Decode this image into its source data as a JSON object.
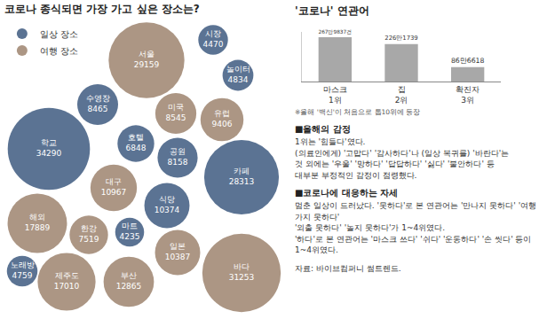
{
  "chart_data": [
    {
      "type": "bubble",
      "title": "코로나 종식되면 가장 가고 싶은 장소는?",
      "legend": "top left",
      "data_labels": true,
      "tick_labels": false,
      "series": [
        {
          "name": "일상 장소",
          "color": "#5b7393",
          "categories": [
            "시장",
            "놀이터",
            "수영장",
            "호텔",
            "학교",
            "카페",
            "공원",
            "식당",
            "마트",
            "노래방"
          ],
          "values": [
            4470,
            4834,
            8465,
            6848,
            34290,
            28313,
            8158,
            10374,
            4235,
            4759
          ]
        },
        {
          "name": "여행 장소",
          "color": "#ac9684",
          "categories": [
            "서울",
            "미국",
            "유럽",
            "대구",
            "해외",
            "한강",
            "일본",
            "부산",
            "제주도",
            "바다"
          ],
          "values": [
            29159,
            8545,
            9406,
            10967,
            17889,
            7519,
            10387,
            12865,
            17010,
            31253
          ]
        }
      ]
    },
    {
      "type": "bar",
      "title": "'코로나' 연관어",
      "categories": [
        "마스크",
        "집",
        "확진자"
      ],
      "rank_labels": [
        "1위",
        "2위",
        "3위"
      ],
      "values": [
        2679837,
        2261739,
        866618
      ],
      "value_labels": [
        "267만9837건",
        "226만1739",
        "86만6618"
      ],
      "color": "#a8a8a8",
      "ylim": [
        0,
        3000000
      ],
      "data_labels": true,
      "tick_labels": "x",
      "grid": false,
      "annotation": "※올해 '백신'이 처음으로 톱10위에 등장"
    }
  ],
  "text": {
    "sections": [
      {
        "heading": "■올해의 감정",
        "lines": [
          "1위는 '힘들다'였다.",
          "(의료인에게) '고맙다' '감사하다'나 (일상 복귀를) '바란다'는",
          "것 외에는 '우울' '망하다' '답답하다' '싫다' '불안하다' 등",
          "대부분 부정적인 감정이 점령했다."
        ]
      },
      {
        "heading": "■코로나에 대응하는 자세",
        "lines": [
          "멈춘 일상이 드러났다. '못하다'로 본 연관어는 '만나지 못하다' '여행 가지 못하다'",
          "'외출 못하다' '놀지 못하다'가 1~4위였다.",
          "'하다'로 본 연관어는 '마스크 쓰다' '쉬다' '운동하다' '손 씻다' 등이 1~4위였다."
        ]
      }
    ],
    "source": "자료: 바이브컴퍼니 썸트렌드."
  }
}
